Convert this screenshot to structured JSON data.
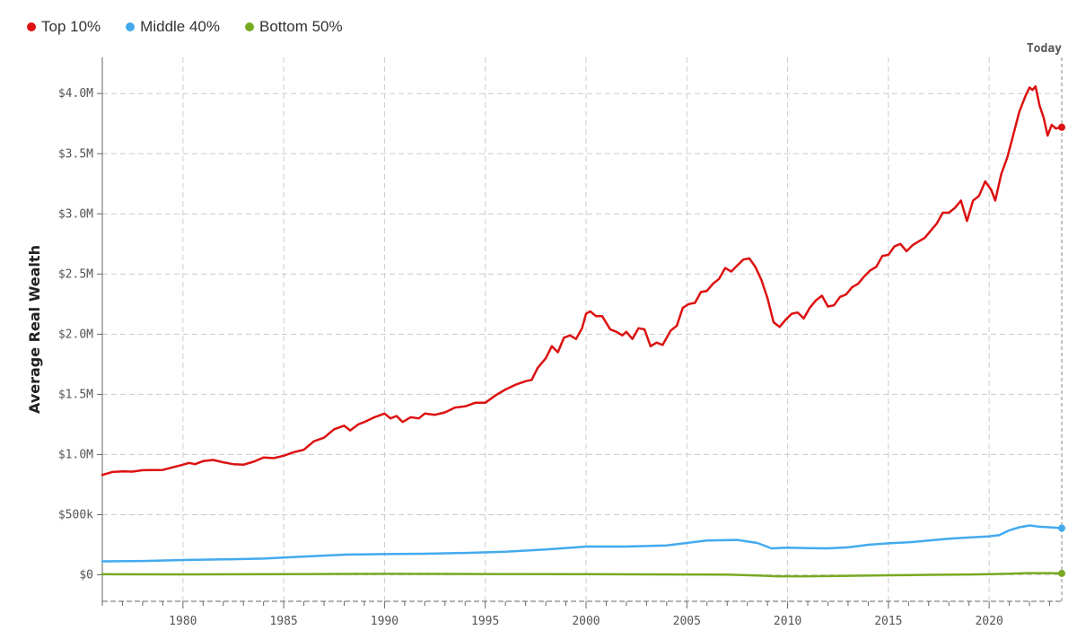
{
  "chart_data": {
    "type": "line",
    "title": "",
    "xlabel": "",
    "ylabel": "Average Real Wealth",
    "xlim": [
      1976,
      2023.6
    ],
    "ylim": [
      -220000,
      4300000
    ],
    "today_label": "Today",
    "legend": [
      {
        "name": "Top 10%",
        "color": "#dd1111"
      },
      {
        "name": "Middle 40%",
        "color": "#44aaee"
      },
      {
        "name": "Bottom 50%",
        "color": "#77aa22"
      }
    ],
    "x_ticks": [
      1980,
      1985,
      1990,
      1995,
      2000,
      2005,
      2010,
      2015,
      2020
    ],
    "y_ticks": [
      {
        "value": 0,
        "label": "$0"
      },
      {
        "value": 500000,
        "label": "$500k"
      },
      {
        "value": 1000000,
        "label": "$1.0M"
      },
      {
        "value": 1500000,
        "label": "$1.5M"
      },
      {
        "value": 2000000,
        "label": "$2.0M"
      },
      {
        "value": 2500000,
        "label": "$2.5M"
      },
      {
        "value": 3000000,
        "label": "$3.0M"
      },
      {
        "value": 3500000,
        "label": "$3.5M"
      },
      {
        "value": 4000000,
        "label": "$4.0M"
      }
    ],
    "series": [
      {
        "name": "Top 10%",
        "color": "#dd1111",
        "points": [
          [
            1976,
            830000
          ],
          [
            1976.5,
            855000
          ],
          [
            1977,
            860000
          ],
          [
            1977.5,
            858000
          ],
          [
            1978,
            870000
          ],
          [
            1979,
            872000
          ],
          [
            1980,
            915000
          ],
          [
            1980.3,
            930000
          ],
          [
            1980.6,
            920000
          ],
          [
            1981,
            945000
          ],
          [
            1981.5,
            955000
          ],
          [
            1982,
            935000
          ],
          [
            1982.5,
            920000
          ],
          [
            1983,
            915000
          ],
          [
            1983.5,
            940000
          ],
          [
            1984,
            975000
          ],
          [
            1984.5,
            970000
          ],
          [
            1985,
            990000
          ],
          [
            1985.5,
            1020000
          ],
          [
            1986,
            1040000
          ],
          [
            1986.5,
            1110000
          ],
          [
            1987,
            1140000
          ],
          [
            1987.5,
            1210000
          ],
          [
            1988,
            1240000
          ],
          [
            1988.3,
            1200000
          ],
          [
            1988.7,
            1250000
          ],
          [
            1989,
            1270000
          ],
          [
            1989.5,
            1310000
          ],
          [
            1990,
            1340000
          ],
          [
            1990.3,
            1300000
          ],
          [
            1990.6,
            1320000
          ],
          [
            1990.9,
            1270000
          ],
          [
            1991.3,
            1310000
          ],
          [
            1991.7,
            1300000
          ],
          [
            1992,
            1340000
          ],
          [
            1992.5,
            1330000
          ],
          [
            1993,
            1350000
          ],
          [
            1993.5,
            1390000
          ],
          [
            1994,
            1400000
          ],
          [
            1994.5,
            1430000
          ],
          [
            1995,
            1430000
          ],
          [
            1995.5,
            1490000
          ],
          [
            1996,
            1540000
          ],
          [
            1996.5,
            1580000
          ],
          [
            1997,
            1610000
          ],
          [
            1997.3,
            1620000
          ],
          [
            1997.6,
            1720000
          ],
          [
            1998,
            1800000
          ],
          [
            1998.3,
            1900000
          ],
          [
            1998.6,
            1850000
          ],
          [
            1998.9,
            1970000
          ],
          [
            1999.2,
            1990000
          ],
          [
            1999.5,
            1960000
          ],
          [
            1999.8,
            2050000
          ],
          [
            2000,
            2170000
          ],
          [
            2000.2,
            2190000
          ],
          [
            2000.5,
            2150000
          ],
          [
            2000.8,
            2150000
          ],
          [
            2001.2,
            2040000
          ],
          [
            2001.5,
            2020000
          ],
          [
            2001.8,
            1990000
          ],
          [
            2002,
            2020000
          ],
          [
            2002.3,
            1960000
          ],
          [
            2002.6,
            2050000
          ],
          [
            2002.9,
            2040000
          ],
          [
            2003.2,
            1900000
          ],
          [
            2003.5,
            1930000
          ],
          [
            2003.8,
            1910000
          ],
          [
            2004.2,
            2030000
          ],
          [
            2004.5,
            2070000
          ],
          [
            2004.8,
            2220000
          ],
          [
            2005.1,
            2250000
          ],
          [
            2005.4,
            2260000
          ],
          [
            2005.7,
            2350000
          ],
          [
            2006,
            2360000
          ],
          [
            2006.3,
            2420000
          ],
          [
            2006.6,
            2460000
          ],
          [
            2006.9,
            2550000
          ],
          [
            2007.2,
            2520000
          ],
          [
            2007.5,
            2570000
          ],
          [
            2007.8,
            2620000
          ],
          [
            2008.1,
            2630000
          ],
          [
            2008.4,
            2560000
          ],
          [
            2008.7,
            2450000
          ],
          [
            2009,
            2300000
          ],
          [
            2009.3,
            2100000
          ],
          [
            2009.6,
            2060000
          ],
          [
            2009.9,
            2120000
          ],
          [
            2010.2,
            2170000
          ],
          [
            2010.5,
            2180000
          ],
          [
            2010.8,
            2130000
          ],
          [
            2011.1,
            2220000
          ],
          [
            2011.4,
            2280000
          ],
          [
            2011.7,
            2320000
          ],
          [
            2012,
            2230000
          ],
          [
            2012.3,
            2240000
          ],
          [
            2012.6,
            2310000
          ],
          [
            2012.9,
            2330000
          ],
          [
            2013.2,
            2390000
          ],
          [
            2013.5,
            2420000
          ],
          [
            2013.8,
            2480000
          ],
          [
            2014.1,
            2530000
          ],
          [
            2014.4,
            2560000
          ],
          [
            2014.7,
            2650000
          ],
          [
            2015,
            2660000
          ],
          [
            2015.3,
            2730000
          ],
          [
            2015.6,
            2750000
          ],
          [
            2015.9,
            2690000
          ],
          [
            2016.2,
            2740000
          ],
          [
            2016.5,
            2770000
          ],
          [
            2016.8,
            2800000
          ],
          [
            2017.1,
            2860000
          ],
          [
            2017.4,
            2920000
          ],
          [
            2017.7,
            3010000
          ],
          [
            2018,
            3010000
          ],
          [
            2018.3,
            3050000
          ],
          [
            2018.6,
            3110000
          ],
          [
            2018.9,
            2940000
          ],
          [
            2019.2,
            3110000
          ],
          [
            2019.5,
            3150000
          ],
          [
            2019.8,
            3270000
          ],
          [
            2020.1,
            3200000
          ],
          [
            2020.3,
            3110000
          ],
          [
            2020.6,
            3330000
          ],
          [
            2020.9,
            3470000
          ],
          [
            2021.2,
            3660000
          ],
          [
            2021.5,
            3850000
          ],
          [
            2021.8,
            3980000
          ],
          [
            2022,
            4050000
          ],
          [
            2022.15,
            4030000
          ],
          [
            2022.3,
            4060000
          ],
          [
            2022.5,
            3900000
          ],
          [
            2022.7,
            3800000
          ],
          [
            2022.9,
            3650000
          ],
          [
            2023.1,
            3740000
          ],
          [
            2023.3,
            3710000
          ],
          [
            2023.6,
            3720000
          ]
        ]
      },
      {
        "name": "Middle 40%",
        "color": "#44aaee",
        "points": [
          [
            1976,
            112000
          ],
          [
            1978,
            115000
          ],
          [
            1980,
            123000
          ],
          [
            1982,
            128000
          ],
          [
            1984,
            135000
          ],
          [
            1986,
            152000
          ],
          [
            1988,
            168000
          ],
          [
            1990,
            172000
          ],
          [
            1992,
            175000
          ],
          [
            1994,
            182000
          ],
          [
            1996,
            192000
          ],
          [
            1998,
            210000
          ],
          [
            2000,
            235000
          ],
          [
            2002,
            235000
          ],
          [
            2004,
            245000
          ],
          [
            2006,
            285000
          ],
          [
            2007.5,
            290000
          ],
          [
            2008.5,
            265000
          ],
          [
            2009.2,
            220000
          ],
          [
            2010,
            225000
          ],
          [
            2011,
            222000
          ],
          [
            2012,
            220000
          ],
          [
            2013,
            228000
          ],
          [
            2014,
            250000
          ],
          [
            2015,
            262000
          ],
          [
            2016,
            270000
          ],
          [
            2017,
            285000
          ],
          [
            2018,
            300000
          ],
          [
            2019,
            310000
          ],
          [
            2020,
            320000
          ],
          [
            2020.5,
            330000
          ],
          [
            2021,
            370000
          ],
          [
            2021.5,
            395000
          ],
          [
            2022,
            410000
          ],
          [
            2022.5,
            400000
          ],
          [
            2023,
            395000
          ],
          [
            2023.6,
            388000
          ]
        ]
      },
      {
        "name": "Bottom 50%",
        "color": "#77aa22",
        "points": [
          [
            1976,
            5000
          ],
          [
            1980,
            4000
          ],
          [
            1985,
            6000
          ],
          [
            1990,
            8000
          ],
          [
            1995,
            7000
          ],
          [
            2000,
            5000
          ],
          [
            2005,
            3000
          ],
          [
            2007,
            2000
          ],
          [
            2008.5,
            -5000
          ],
          [
            2009.5,
            -12000
          ],
          [
            2011,
            -12000
          ],
          [
            2013,
            -8000
          ],
          [
            2015,
            -4000
          ],
          [
            2017,
            0
          ],
          [
            2019,
            3000
          ],
          [
            2020,
            5000
          ],
          [
            2021,
            10000
          ],
          [
            2022,
            14000
          ],
          [
            2023,
            14000
          ],
          [
            2023.6,
            12000
          ]
        ]
      }
    ]
  }
}
